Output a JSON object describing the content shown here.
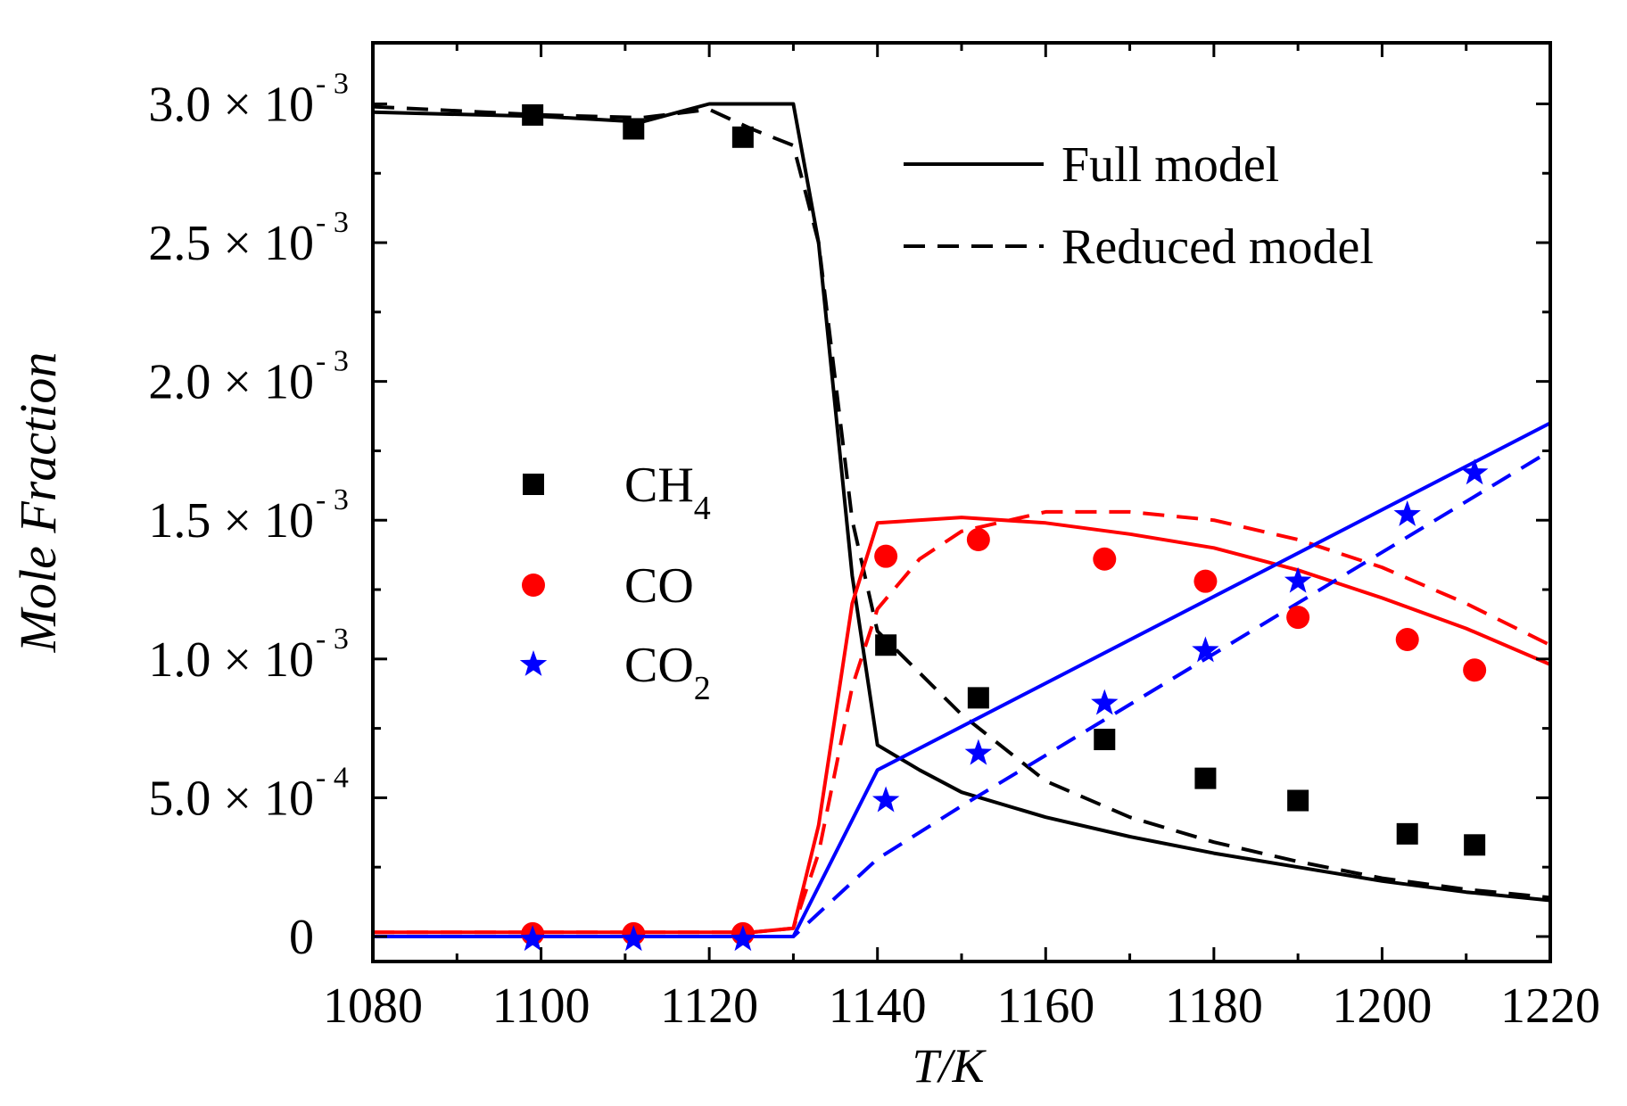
{
  "chart_data": {
    "type": "line",
    "xlabel": "T/K",
    "ylabel": "Mole Fraction",
    "xlim": [
      1080,
      1220
    ],
    "ylim": [
      -9e-05,
      0.00322
    ],
    "x_ticks": [
      1080,
      1100,
      1120,
      1140,
      1160,
      1180,
      1200,
      1220
    ],
    "y_ticks": [
      {
        "value": 0,
        "mantissa": "0",
        "exponent": ""
      },
      {
        "value": 0.0005,
        "mantissa": "5.0 × 10",
        "exponent": "- 4"
      },
      {
        "value": 0.001,
        "mantissa": "1.0 × 10",
        "exponent": "- 3"
      },
      {
        "value": 0.0015,
        "mantissa": "1.5 × 10",
        "exponent": "- 3"
      },
      {
        "value": 0.002,
        "mantissa": "2.0 × 10",
        "exponent": "- 3"
      },
      {
        "value": 0.0025,
        "mantissa": "2.5 × 10",
        "exponent": "- 3"
      },
      {
        "value": 0.003,
        "mantissa": "3.0 × 10",
        "exponent": "- 3"
      }
    ],
    "model_legend": [
      {
        "label": "Full model",
        "dash": "solid"
      },
      {
        "label": "Reduced model",
        "dash": "dashed"
      }
    ],
    "species_legend": [
      {
        "base": "CH",
        "sub": "4",
        "marker": "square",
        "color": "#000000"
      },
      {
        "base": "CO",
        "sub": "",
        "marker": "circle",
        "color": "#ff0000"
      },
      {
        "base": "CO",
        "sub": "2",
        "marker": "star",
        "color": "#0000ff"
      }
    ],
    "lines": [
      {
        "name": "CH4 Full model",
        "color": "#000000",
        "dash": "solid",
        "x": [
          1080,
          1100,
          1112,
          1120,
          1125,
          1130,
          1133,
          1135,
          1137,
          1140,
          1145,
          1150,
          1160,
          1170,
          1180,
          1190,
          1200,
          1210,
          1220
        ],
        "y": [
          0.00297,
          0.002955,
          0.002935,
          0.003,
          0.003,
          0.003,
          0.0025,
          0.0019,
          0.0013,
          0.00069,
          0.0006,
          0.00052,
          0.00043,
          0.00036,
          0.0003,
          0.00025,
          0.0002,
          0.00016,
          0.00013
        ]
      },
      {
        "name": "CH4 Reduced model",
        "color": "#000000",
        "dash": "dashed",
        "x": [
          1080,
          1100,
          1112,
          1120,
          1125,
          1130,
          1133,
          1135,
          1137,
          1140,
          1145,
          1150,
          1160,
          1170,
          1180,
          1190,
          1200,
          1210,
          1220
        ],
        "y": [
          0.00299,
          0.00296,
          0.00295,
          0.00298,
          0.00291,
          0.00285,
          0.0025,
          0.002,
          0.0015,
          0.0011,
          0.00095,
          0.0008,
          0.00056,
          0.00043,
          0.00034,
          0.00027,
          0.00021,
          0.00017,
          0.00014
        ]
      },
      {
        "name": "CO Full model",
        "color": "#ff0000",
        "dash": "solid",
        "x": [
          1080,
          1125,
          1130,
          1133,
          1135,
          1137,
          1140,
          1150,
          1160,
          1170,
          1180,
          1190,
          1200,
          1210,
          1220
        ],
        "y": [
          1.5e-05,
          1.5e-05,
          3e-05,
          0.0004,
          0.0008,
          0.0012,
          0.00149,
          0.00151,
          0.00149,
          0.00145,
          0.0014,
          0.00132,
          0.00122,
          0.00111,
          0.00098
        ]
      },
      {
        "name": "CO Reduced model",
        "color": "#ff0000",
        "dash": "dashed",
        "x": [
          1080,
          1125,
          1130,
          1133,
          1135,
          1137,
          1140,
          1145,
          1150,
          1160,
          1170,
          1180,
          1190,
          1200,
          1210,
          1220
        ],
        "y": [
          1.5e-05,
          1.5e-05,
          3e-05,
          0.0003,
          0.0006,
          0.0009,
          0.00118,
          0.00136,
          0.00146,
          0.00153,
          0.00153,
          0.0015,
          0.00143,
          0.00133,
          0.0012,
          0.00105
        ]
      },
      {
        "name": "CO2 Full model",
        "color": "#0000ff",
        "dash": "solid",
        "x": [
          1080,
          1130,
          1140,
          1220
        ],
        "y": [
          0,
          0,
          0.0006,
          0.00185
        ]
      },
      {
        "name": "CO2 Reduced model",
        "color": "#0000ff",
        "dash": "dashed",
        "x": [
          1080,
          1130,
          1140,
          1150,
          1220
        ],
        "y": [
          0,
          0,
          0.00028,
          0.00047,
          0.00175
        ]
      }
    ],
    "points": [
      {
        "name": "CH4",
        "marker": "square",
        "color": "#000000",
        "x": [
          1099,
          1111,
          1124,
          1141,
          1152,
          1167,
          1179,
          1190,
          1203,
          1211
        ],
        "y": [
          0.00296,
          0.00291,
          0.00288,
          0.00105,
          0.00086,
          0.00071,
          0.00057,
          0.00049,
          0.00037,
          0.00033
        ]
      },
      {
        "name": "CO",
        "marker": "circle",
        "color": "#ff0000",
        "x": [
          1099,
          1111,
          1124,
          1141,
          1152,
          1167,
          1179,
          1190,
          1203,
          1211
        ],
        "y": [
          1e-05,
          1e-05,
          1e-05,
          0.00137,
          0.00143,
          0.00136,
          0.00128,
          0.00115,
          0.00107,
          0.00096
        ]
      },
      {
        "name": "CO2",
        "marker": "star",
        "color": "#0000ff",
        "x": [
          1099,
          1111,
          1124,
          1141,
          1152,
          1167,
          1179,
          1190,
          1203,
          1211
        ],
        "y": [
          -1e-05,
          -1e-05,
          -1e-05,
          0.00049,
          0.00066,
          0.00084,
          0.00103,
          0.00128,
          0.00152,
          0.00167
        ]
      }
    ]
  }
}
